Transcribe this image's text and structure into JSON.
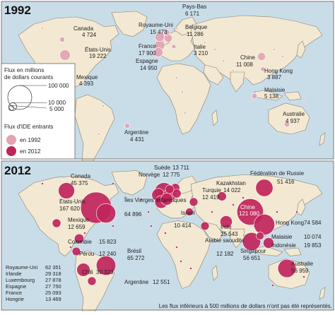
{
  "colors": {
    "ocean": "#c9dde9",
    "land": "#f3e9d2",
    "land_stroke": "#8b7d6b",
    "bubble_1992": "#e2a3b3",
    "bubble_2012": "#c0245a",
    "bubble_stroke": "#ffffff",
    "leader": "#333333"
  },
  "panels": [
    {
      "year": "1992",
      "labels": [
        {
          "name": "Canada",
          "value": "4 724"
        },
        {
          "name": "États-Unis",
          "value": "19 222"
        },
        {
          "name": "Mexique",
          "value": "4 393"
        },
        {
          "name": "Royaume-Uni",
          "value": "15 473"
        },
        {
          "name": "France",
          "value": "17 900"
        },
        {
          "name": "Espagne",
          "value": "14 950"
        },
        {
          "name": "Pays-Bas",
          "value": "6 171"
        },
        {
          "name": "Belgique",
          "value": "11 286"
        },
        {
          "name": "Italie",
          "value": "3 210"
        },
        {
          "name": "Chine",
          "value": "11 008"
        },
        {
          "name": "Hong Kong",
          "value": "3 887"
        },
        {
          "name": "Malaisie",
          "value": "5 138"
        },
        {
          "name": "Australie",
          "value": "4 937"
        },
        {
          "name": "Argentine",
          "value": "4 431"
        }
      ]
    },
    {
      "year": "2012",
      "labels": [
        {
          "name": "Canada",
          "value": "45 375"
        },
        {
          "name": "États-Unis",
          "value": "167 620"
        },
        {
          "name": "Îles Vierges britanniques",
          "value": "64 896"
        },
        {
          "name": "Mexique",
          "value": "12 659"
        },
        {
          "name": "Colombie",
          "value": "15 823"
        },
        {
          "name": "Pérou",
          "value": "12 240"
        },
        {
          "name": "Brésil",
          "value": "65 272"
        },
        {
          "name": "Chili",
          "value": "30 323"
        },
        {
          "name": "Argentine",
          "value": "12 551"
        },
        {
          "name": "Suède",
          "value": "13 711"
        },
        {
          "name": "Norvège",
          "value": "12 775"
        },
        {
          "name": "Turquie",
          "value": "12 419"
        },
        {
          "name": "Israël",
          "value": "10 414"
        },
        {
          "name": "Kazakhstan",
          "value": "14 022"
        },
        {
          "name": "Fédération de Russie",
          "value": "51 416"
        },
        {
          "name": "Chine",
          "value": "121 080"
        },
        {
          "name": "Hong Kong",
          "value": "74 584"
        },
        {
          "name": "Inde",
          "value": "25 543"
        },
        {
          "name": "Arabie saoudite",
          "value": "12 182"
        },
        {
          "name": "Malaisie",
          "value": "10 074"
        },
        {
          "name": "Indonésie",
          "value": "19 853"
        },
        {
          "name": "Singapour",
          "value": "56 651"
        },
        {
          "name": "Australie",
          "value": "56 959"
        }
      ],
      "europe_table": [
        {
          "name": "Royaume-Uni",
          "value": "62 351"
        },
        {
          "name": "Irlande",
          "value": "29 318"
        },
        {
          "name": "Luxembourg",
          "value": "27 878"
        },
        {
          "name": "Espagne",
          "value": "27 750"
        },
        {
          "name": "France",
          "value": "25 093"
        },
        {
          "name": "Hongrie",
          "value": "13 469"
        }
      ]
    }
  ],
  "legend": {
    "size_title_line1": "Flux en millions",
    "size_title_line2": "de dollars courants",
    "size_values": [
      "100 000",
      "10 000",
      "5 000"
    ],
    "color_title": "Flux d'IDE entrants",
    "items": [
      {
        "label": "en 1992",
        "color": "#e2a3b3"
      },
      {
        "label": "en 2012",
        "color": "#c0245a"
      }
    ]
  },
  "note": "Les flux inférieurs à 500 millions de dollars n'ont pas été représentés."
}
